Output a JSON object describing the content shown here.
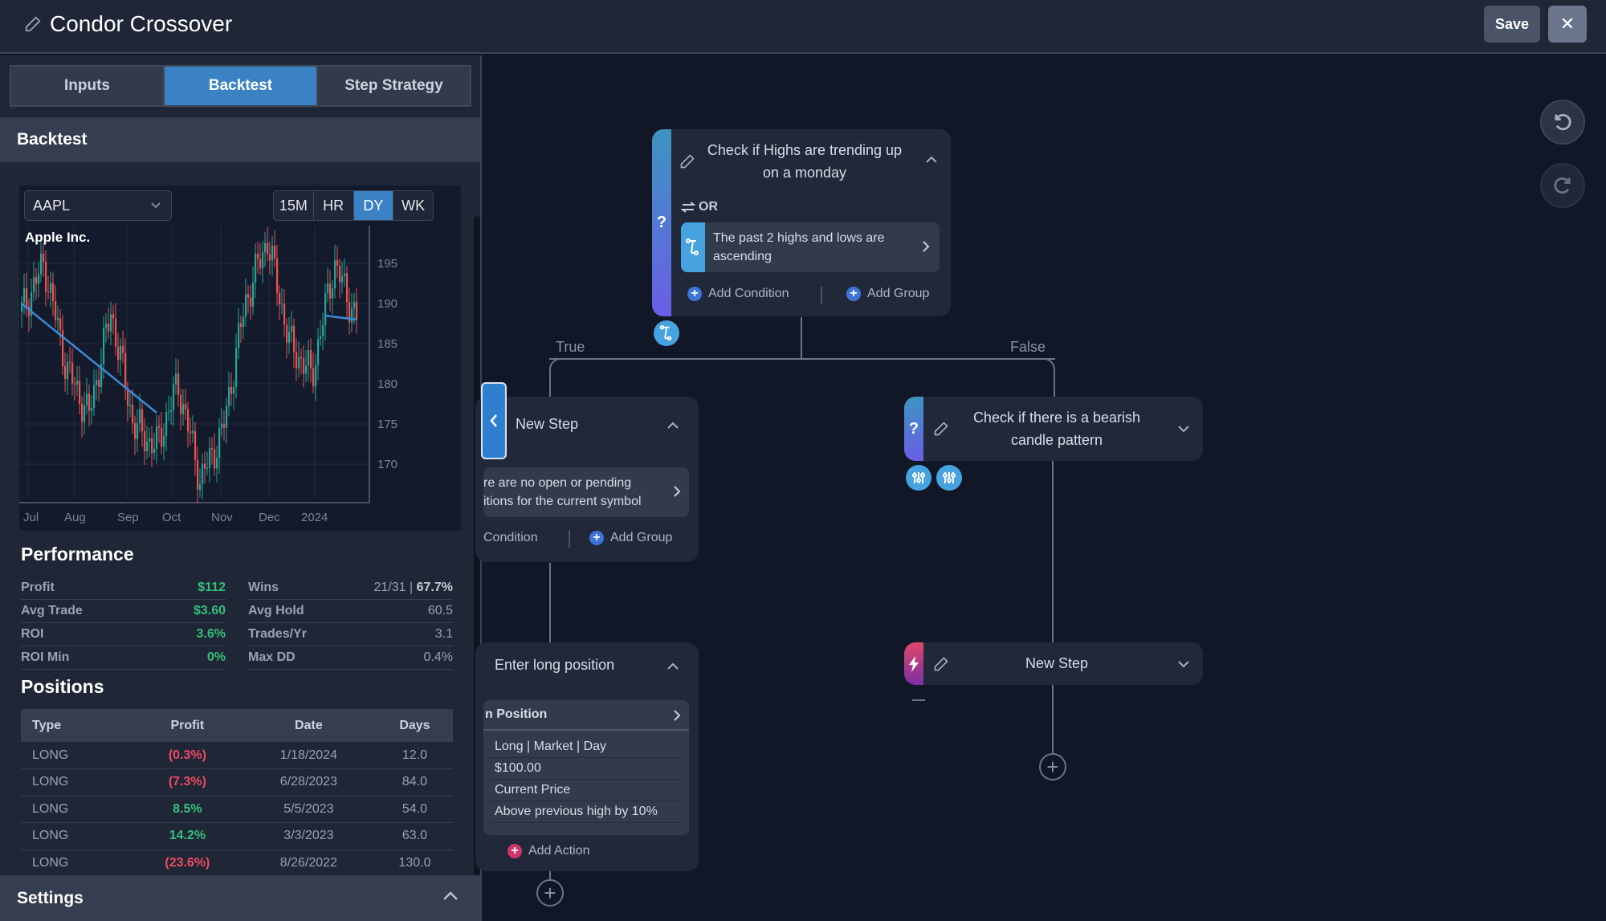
{
  "header": {
    "title": "Condor Crossover",
    "save_label": "Save",
    "close_label": "✕"
  },
  "sidebar": {
    "tabs": [
      {
        "label": "Inputs",
        "active": false
      },
      {
        "label": "Backtest",
        "active": true
      },
      {
        "label": "Step Strategy",
        "active": false
      }
    ],
    "backtest_title": "Backtest",
    "chart": {
      "symbol": "AAPL",
      "company": "Apple Inc.",
      "timeframes": [
        "15M",
        "HR",
        "DY",
        "WK"
      ],
      "active_timeframe": "DY"
    },
    "performance": {
      "title": "Performance",
      "left": [
        {
          "label": "Profit",
          "value": "$112"
        },
        {
          "label": "Avg Trade",
          "value": "$3.60"
        },
        {
          "label": "ROI",
          "value": "3.6%"
        },
        {
          "label": "ROI Min",
          "value": "0%"
        }
      ],
      "right": [
        {
          "label": "Wins",
          "value_plain": "21/31 | ",
          "value_bold": "67.7%"
        },
        {
          "label": "Avg Hold",
          "value": "60.5"
        },
        {
          "label": "Trades/Yr",
          "value": "3.1"
        },
        {
          "label": "Max DD",
          "value": "0.4%"
        }
      ]
    },
    "positions": {
      "title": "Positions",
      "columns": [
        "Type",
        "Profit",
        "Date",
        "Days"
      ],
      "rows": [
        {
          "type": "LONG",
          "profit": "(0.3%)",
          "date": "1/18/2024",
          "days": "12.0"
        },
        {
          "type": "LONG",
          "profit": "(7.3%)",
          "date": "6/28/2023",
          "days": "84.0"
        },
        {
          "type": "LONG",
          "profit": "8.5%",
          "date": "5/5/2023",
          "days": "54.0"
        },
        {
          "type": "LONG",
          "profit": "14.2%",
          "date": "3/3/2023",
          "days": "63.0"
        },
        {
          "type": "LONG",
          "profit": "(23.6%)",
          "date": "8/26/2022",
          "days": "130.0"
        }
      ]
    },
    "settings_title": "Settings"
  },
  "chart_data": {
    "type": "candlestick",
    "title": "Apple Inc.",
    "symbol": "AAPL",
    "x_tick_labels": [
      "Jul",
      "Aug",
      "Sep",
      "Oct",
      "Nov",
      "Dec",
      "2024"
    ],
    "y_tick_labels": [
      195,
      190,
      185,
      180,
      175,
      170
    ],
    "ylim": [
      166,
      199
    ],
    "approx_close_series": [
      {
        "month": "Jul (start)",
        "price": 189
      },
      {
        "month": "late Jul",
        "price": 195
      },
      {
        "month": "Aug (start)",
        "price": 182
      },
      {
        "month": "mid Aug",
        "price": 176
      },
      {
        "month": "Sep (start)",
        "price": 189
      },
      {
        "month": "mid Sep",
        "price": 175
      },
      {
        "month": "Oct (start)",
        "price": 172
      },
      {
        "month": "mid Oct",
        "price": 180
      },
      {
        "month": "late Oct",
        "price": 168
      },
      {
        "month": "Nov (start)",
        "price": 174
      },
      {
        "month": "late Nov",
        "price": 190
      },
      {
        "month": "mid Dec",
        "price": 198
      },
      {
        "month": "2024 (start)",
        "price": 185
      },
      {
        "month": "mid Jan",
        "price": 181
      },
      {
        "month": "late Jan",
        "price": 195
      },
      {
        "month": "end",
        "price": 188
      }
    ],
    "trend_lines": [
      {
        "from": {
          "x": "Jul (start)",
          "y": 189
        },
        "to": {
          "x": "mid Sep",
          "y": 175.5
        }
      },
      {
        "from": {
          "x": "late Jan",
          "y": 188.5
        },
        "to": {
          "x": "end",
          "y": 188
        }
      }
    ],
    "colors": {
      "up": "#26a69a",
      "down": "#ef5350",
      "trend": "#3a8bd8"
    }
  },
  "canvas": {
    "undo_icon": "undo-icon",
    "redo_icon": "redo-icon",
    "node_root": {
      "title": "Check if Highs are trending up on a monday",
      "logic": "OR",
      "condition": "The past 2 highs and lows are ascending",
      "add_condition": "Add Condition",
      "add_group": "Add Group"
    },
    "branch_true": "True",
    "branch_false": "False",
    "node_true": {
      "title": "New Step",
      "condition": "re are no open or pending\nitions for the current symbol",
      "add_condition": "Condition",
      "add_group": "Add Group"
    },
    "node_action": {
      "title": "Enter long position",
      "action_header": "n Position",
      "details": [
        "Long | Market | Day",
        "$100.00",
        "Current Price",
        "Above previous high by 10%"
      ],
      "add_action": "Add Action"
    },
    "node_false": {
      "title": "Check if there is a bearish candle pattern"
    },
    "node_false_action": {
      "title": "New Step"
    }
  }
}
